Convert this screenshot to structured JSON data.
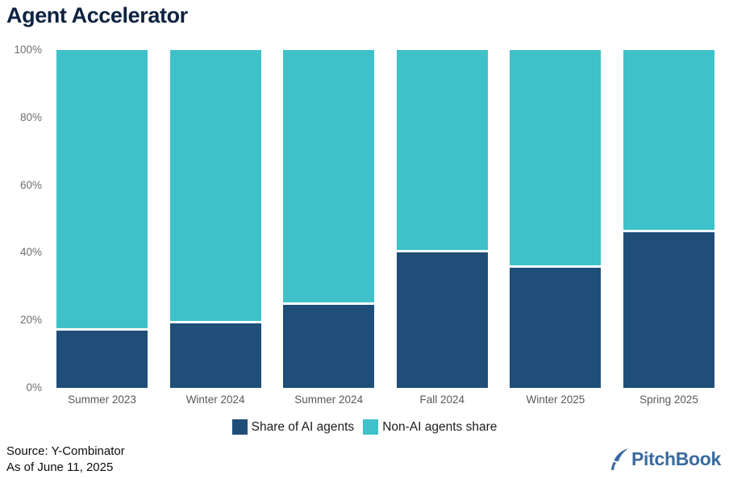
{
  "title": "Agent Accelerator",
  "source": {
    "line1": "Source: Y-Combinator",
    "line2": "As of June 11, 2025"
  },
  "logo_text": "PitchBook",
  "colors": {
    "ai_blue": "#1f4e79",
    "non_ai_teal": "#3fc1c9",
    "title_navy": "#0e2240",
    "y_label_gray": "#6e6e6e",
    "x_label_gray": "#595959",
    "logo_blue": "#3a6a9f"
  },
  "chart_data": {
    "type": "bar",
    "stacked": true,
    "title": "Agent Accelerator",
    "xlabel": "",
    "ylabel": "",
    "ylim": [
      0,
      100
    ],
    "yticks": [
      "0%",
      "20%",
      "40%",
      "60%",
      "80%",
      "100%"
    ],
    "grid": false,
    "legend_position": "bottom",
    "categories": [
      "Summer 2023",
      "Winter 2024",
      "Summer 2024",
      "Fall 2024",
      "Winter 2025",
      "Spring 2025"
    ],
    "series": [
      {
        "name": "Share of AI agents",
        "color": "#1f4e79",
        "values": [
          17,
          19,
          24.5,
          40,
          35.5,
          46
        ]
      },
      {
        "name": "Non-AI agents share",
        "color": "#3fc1c9",
        "values": [
          83,
          81,
          75.5,
          60,
          64.5,
          54
        ]
      }
    ]
  }
}
